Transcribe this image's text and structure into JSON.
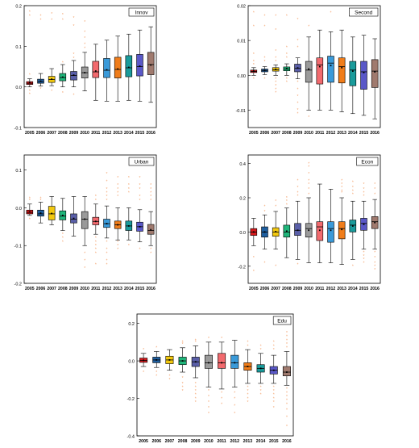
{
  "years": [
    "2005",
    "2006",
    "2007",
    "2008",
    "2009",
    "2010",
    "2011",
    "2012",
    "2013",
    "2014",
    "2015",
    "2016"
  ],
  "box_colors": [
    "#d7191c",
    "#1f5fa0",
    "#f2c80f",
    "#1fb57a",
    "#5a5fa8",
    "#9a9a9a",
    "#f26a6e",
    "#3a9ad9",
    "#f07d1a",
    "#1a9b9b",
    "#5a58c8",
    "#a07a6e"
  ],
  "outlier_color": "#f4a06a",
  "chart_data": [
    {
      "type": "box",
      "title": "Innov",
      "categories": [
        "2005",
        "2006",
        "2007",
        "2008",
        "2009",
        "2010",
        "2011",
        "2012",
        "2013",
        "2014",
        "2015",
        "2016"
      ],
      "ylim": [
        -0.1,
        0.2
      ],
      "yticks": [
        -0.1,
        0.0,
        0.1,
        0.2
      ],
      "ytick_labels": [
        "-0.1",
        "0.0",
        "0.1",
        "0.2"
      ],
      "boxes": [
        {
          "whislo": 0.0,
          "q1": 0.006,
          "med": 0.009,
          "q3": 0.013,
          "whishi": 0.02,
          "mean": 0.01,
          "fliers": [
            0.185,
            0.175,
            -0.01,
            0.03,
            -0.018
          ]
        },
        {
          "whislo": 0.002,
          "q1": 0.009,
          "med": 0.013,
          "q3": 0.019,
          "whishi": 0.033,
          "mean": 0.014,
          "fliers": [
            0.175,
            0.165,
            -0.005
          ]
        },
        {
          "whislo": 0.003,
          "q1": 0.011,
          "med": 0.018,
          "q3": 0.026,
          "whishi": 0.045,
          "mean": 0.019,
          "fliers": [
            0.18,
            0.165,
            -0.01
          ]
        },
        {
          "whislo": 0.0,
          "q1": 0.015,
          "med": 0.023,
          "q3": 0.033,
          "whishi": 0.055,
          "mean": 0.024,
          "fliers": [
            0.178,
            0.165,
            0.06,
            -0.015
          ]
        },
        {
          "whislo": 0.0,
          "q1": 0.017,
          "med": 0.028,
          "q3": 0.038,
          "whishi": 0.065,
          "mean": 0.029,
          "fliers": [
            0.17,
            0.15,
            0.08,
            0.07,
            -0.02
          ]
        },
        {
          "whislo": -0.01,
          "q1": 0.022,
          "med": 0.035,
          "q3": 0.049,
          "whishi": 0.085,
          "mean": 0.035,
          "fliers": [
            0.16,
            0.135,
            0.12,
            0.105,
            0.095
          ]
        },
        {
          "whislo": -0.033,
          "q1": 0.023,
          "med": 0.037,
          "q3": 0.063,
          "whishi": 0.105,
          "mean": 0.039,
          "fliers": []
        },
        {
          "whislo": -0.035,
          "q1": 0.023,
          "med": 0.041,
          "q3": 0.07,
          "whishi": 0.115,
          "mean": 0.042,
          "fliers": []
        },
        {
          "whislo": -0.035,
          "q1": 0.022,
          "med": 0.043,
          "q3": 0.073,
          "whishi": 0.125,
          "mean": 0.044,
          "fliers": []
        },
        {
          "whislo": -0.033,
          "q1": 0.025,
          "med": 0.047,
          "q3": 0.077,
          "whishi": 0.13,
          "mean": 0.048,
          "fliers": []
        },
        {
          "whislo": -0.035,
          "q1": 0.027,
          "med": 0.05,
          "q3": 0.08,
          "whishi": 0.14,
          "mean": 0.051,
          "fliers": []
        },
        {
          "whislo": -0.038,
          "q1": 0.03,
          "med": 0.055,
          "q3": 0.085,
          "whishi": 0.148,
          "mean": 0.054,
          "fliers": []
        }
      ]
    },
    {
      "type": "box",
      "title": "Second",
      "categories": [
        "2005",
        "2006",
        "2007",
        "2008",
        "2009",
        "2010",
        "2011",
        "2012",
        "2013",
        "2014",
        "2015",
        "2016"
      ],
      "ylim": [
        -0.015,
        0.02
      ],
      "yticks": [
        -0.01,
        0.0,
        0.01,
        0.02
      ],
      "ytick_labels": [
        "-0.01",
        "0.00",
        "0.01",
        "0.02"
      ],
      "boxes": [
        {
          "whislo": 0.0,
          "q1": 0.0008,
          "med": 0.0011,
          "q3": 0.0015,
          "whishi": 0.0022,
          "mean": 0.0012,
          "fliers": [
            0.018,
            0.014,
            0.006,
            0.004,
            0.003,
            -0.001
          ]
        },
        {
          "whislo": 0.0002,
          "q1": 0.001,
          "med": 0.0014,
          "q3": 0.0018,
          "whishi": 0.0025,
          "mean": 0.0014,
          "fliers": [
            0.017,
            0.014,
            0.005,
            0.004,
            -0.001
          ]
        },
        {
          "whislo": 0.0,
          "q1": 0.0012,
          "med": 0.0016,
          "q3": 0.0022,
          "whishi": 0.003,
          "mean": 0.0017,
          "fliers": [
            0.017,
            0.013,
            0.007,
            0.005,
            0.004,
            -0.001,
            -0.002,
            -0.003,
            -0.004,
            -0.005
          ]
        },
        {
          "whislo": 0.0,
          "q1": 0.0013,
          "med": 0.0018,
          "q3": 0.0024,
          "whishi": 0.0033,
          "mean": 0.0019,
          "fliers": [
            0.017,
            0.008,
            0.006,
            0.005,
            -0.001,
            -0.002
          ]
        },
        {
          "whislo": -0.001,
          "q1": 0.001,
          "med": 0.002,
          "q3": 0.0032,
          "whishi": 0.005,
          "mean": 0.0021,
          "fliers": [
            0.016,
            0.01,
            0.008,
            -0.002,
            -0.004,
            -0.006,
            -0.008,
            -0.01,
            -0.011
          ]
        },
        {
          "whislo": -0.01,
          "q1": -0.002,
          "med": 0.0015,
          "q3": 0.004,
          "whishi": 0.011,
          "mean": 0.0018,
          "fliers": [
            0.014,
            -0.012
          ]
        },
        {
          "whislo": -0.01,
          "q1": -0.0025,
          "med": 0.003,
          "q3": 0.005,
          "whishi": 0.013,
          "mean": 0.0025,
          "fliers": []
        },
        {
          "whislo": -0.01,
          "q1": -0.002,
          "med": 0.0035,
          "q3": 0.0055,
          "whishi": 0.0125,
          "mean": 0.0028,
          "fliers": [
            0.018
          ]
        },
        {
          "whislo": -0.0105,
          "q1": -0.0022,
          "med": 0.0025,
          "q3": 0.005,
          "whishi": 0.013,
          "mean": 0.0022,
          "fliers": []
        },
        {
          "whislo": -0.011,
          "q1": -0.003,
          "med": 0.0015,
          "q3": 0.004,
          "whishi": 0.011,
          "mean": 0.0012,
          "fliers": []
        },
        {
          "whislo": -0.0115,
          "q1": -0.004,
          "med": 0.001,
          "q3": 0.004,
          "whishi": 0.0115,
          "mean": 0.0008,
          "fliers": []
        },
        {
          "whislo": -0.0125,
          "q1": -0.0035,
          "med": 0.0012,
          "q3": 0.0045,
          "whishi": 0.0105,
          "mean": 0.001,
          "fliers": []
        }
      ]
    },
    {
      "type": "box",
      "title": "Urban",
      "categories": [
        "2005",
        "2006",
        "2007",
        "2008",
        "2009",
        "2010",
        "2011",
        "2012",
        "2013",
        "2014",
        "2015",
        "2016"
      ],
      "ylim": [
        -0.2,
        0.14
      ],
      "yticks": [
        -0.2,
        -0.1,
        0.0,
        0.1
      ],
      "ytick_labels": [
        "-0.2",
        "-0.1",
        "0.0",
        "0.1"
      ],
      "boxes": [
        {
          "whislo": -0.02,
          "q1": -0.016,
          "med": -0.012,
          "q3": -0.006,
          "whishi": 0.01,
          "mean": -0.011,
          "fliers": [
            0.02,
            0.025,
            -0.03
          ]
        },
        {
          "whislo": -0.04,
          "q1": -0.022,
          "med": -0.016,
          "q3": -0.006,
          "whishi": 0.015,
          "mean": -0.014,
          "fliers": [
            0.025,
            0.02
          ]
        },
        {
          "whislo": -0.045,
          "q1": -0.032,
          "med": -0.016,
          "q3": 0.004,
          "whishi": 0.03,
          "mean": -0.015,
          "fliers": []
        },
        {
          "whislo": -0.06,
          "q1": -0.032,
          "med": -0.022,
          "q3": -0.008,
          "whishi": 0.025,
          "mean": -0.02,
          "fliers": [
            -0.07,
            -0.08,
            -0.09
          ]
        },
        {
          "whislo": -0.075,
          "q1": -0.04,
          "med": -0.03,
          "q3": -0.016,
          "whishi": 0.03,
          "mean": -0.028,
          "fliers": []
        },
        {
          "whislo": -0.1,
          "q1": -0.055,
          "med": -0.03,
          "q3": -0.01,
          "whishi": 0.03,
          "mean": -0.03,
          "fliers": [
            -0.12,
            -0.14,
            -0.16
          ]
        },
        {
          "whislo": -0.07,
          "q1": -0.045,
          "med": -0.036,
          "q3": -0.025,
          "whishi": 0.01,
          "mean": -0.036,
          "fliers": [
            -0.08,
            -0.09,
            -0.1,
            -0.11,
            -0.12,
            -0.15,
            0.02,
            0.03
          ]
        },
        {
          "whislo": -0.08,
          "q1": -0.052,
          "med": -0.042,
          "q3": -0.03,
          "whishi": 0.005,
          "mean": -0.042,
          "fliers": [
            0.09,
            0.07,
            0.05,
            0.04,
            0.03,
            0.02,
            -0.09,
            -0.11,
            -0.12,
            -0.14,
            -0.15
          ]
        },
        {
          "whislo": -0.085,
          "q1": -0.055,
          "med": -0.045,
          "q3": -0.035,
          "whishi": 0.0,
          "mean": -0.045,
          "fliers": [
            0.08,
            0.06,
            0.05,
            0.04,
            0.03,
            -0.09,
            -0.1,
            -0.11
          ]
        },
        {
          "whislo": -0.085,
          "q1": -0.06,
          "med": -0.048,
          "q3": -0.035,
          "whishi": 0.0,
          "mean": -0.048,
          "fliers": [
            0.08,
            0.06,
            0.05,
            0.04,
            -0.1
          ]
        },
        {
          "whislo": -0.09,
          "q1": -0.062,
          "med": -0.05,
          "q3": -0.038,
          "whishi": -0.005,
          "mean": -0.05,
          "fliers": [
            0.08,
            0.06,
            0.05,
            0.03,
            0.02,
            -0.11
          ]
        },
        {
          "whislo": -0.1,
          "q1": -0.07,
          "med": -0.06,
          "q3": -0.044,
          "whishi": -0.01,
          "mean": -0.058,
          "fliers": [
            0.06,
            0.05,
            0.04,
            0.03,
            0.02,
            -0.11,
            -0.12
          ]
        }
      ]
    },
    {
      "type": "box",
      "title": "Econ",
      "categories": [
        "2005",
        "2006",
        "2007",
        "2008",
        "2009",
        "2010",
        "2011",
        "2012",
        "2013",
        "2014",
        "2015",
        "2016"
      ],
      "ylim": [
        -0.3,
        0.45
      ],
      "yticks": [
        -0.2,
        0.0,
        0.2,
        0.4
      ],
      "ytick_labels": [
        "-0.2",
        "0.0",
        "0.2",
        "0.4"
      ],
      "boxes": [
        {
          "whislo": -0.08,
          "q1": -0.02,
          "med": 0.0,
          "q3": 0.02,
          "whishi": 0.08,
          "mean": 0.0,
          "fliers": [
            -0.15,
            -0.23
          ]
        },
        {
          "whislo": -0.1,
          "q1": -0.03,
          "med": 0.0,
          "q3": 0.03,
          "whishi": 0.1,
          "mean": 0.0,
          "fliers": [
            0.15,
            0.12,
            -0.18
          ]
        },
        {
          "whislo": -0.1,
          "q1": -0.025,
          "med": 0.0,
          "q3": 0.025,
          "whishi": 0.12,
          "mean": 0.002,
          "fliers": [
            0.18,
            0.15,
            -0.2
          ]
        },
        {
          "whislo": -0.15,
          "q1": -0.03,
          "med": 0.0,
          "q3": 0.04,
          "whishi": 0.14,
          "mean": 0.005,
          "fliers": [
            0.2,
            0.18,
            0.16
          ]
        },
        {
          "whislo": -0.16,
          "q1": -0.02,
          "med": 0.01,
          "q3": 0.05,
          "whishi": 0.18,
          "mean": 0.01,
          "fliers": [
            0.3,
            0.26,
            0.23,
            0.21,
            -0.19
          ]
        },
        {
          "whislo": -0.18,
          "q1": -0.03,
          "med": 0.02,
          "q3": 0.05,
          "whishi": 0.2,
          "mean": 0.01,
          "fliers": [
            0.4,
            0.38,
            0.34,
            0.3,
            0.28,
            0.25,
            0.22
          ]
        },
        {
          "whislo": -0.18,
          "q1": -0.05,
          "med": 0.03,
          "q3": 0.06,
          "whishi": 0.28,
          "mean": 0.01,
          "fliers": []
        },
        {
          "whislo": -0.18,
          "q1": -0.06,
          "med": 0.02,
          "q3": 0.06,
          "whishi": 0.25,
          "mean": 0.01,
          "fliers": []
        },
        {
          "whislo": -0.19,
          "q1": -0.04,
          "med": 0.02,
          "q3": 0.06,
          "whishi": 0.2,
          "mean": 0.015,
          "fliers": [
            0.3,
            0.28,
            0.26,
            0.24,
            0.23
          ]
        },
        {
          "whislo": -0.16,
          "q1": 0.0,
          "med": 0.04,
          "q3": 0.07,
          "whishi": 0.18,
          "mean": 0.035,
          "fliers": [
            0.29,
            0.26,
            0.24,
            0.22,
            -0.2
          ]
        },
        {
          "whislo": -0.1,
          "q1": 0.01,
          "med": 0.05,
          "q3": 0.08,
          "whishi": 0.18,
          "mean": 0.045,
          "fliers": [
            0.28,
            0.25,
            0.23,
            0.21,
            -0.12,
            -0.14,
            -0.16,
            -0.18
          ]
        },
        {
          "whislo": -0.1,
          "q1": 0.02,
          "med": 0.06,
          "q3": 0.09,
          "whishi": 0.19,
          "mean": 0.055,
          "fliers": [
            0.28,
            0.25,
            0.22,
            -0.12,
            -0.15,
            -0.18,
            -0.2,
            -0.22
          ]
        }
      ]
    },
    {
      "type": "box",
      "title": "Edu",
      "categories": [
        "2005",
        "2006",
        "2007",
        "2008",
        "2009",
        "2010",
        "2011",
        "2012",
        "2013",
        "2014",
        "2015",
        "2016"
      ],
      "ylim": [
        -0.4,
        0.25
      ],
      "yticks": [
        -0.4,
        -0.2,
        0.0,
        0.2
      ],
      "ytick_labels": [
        "-0.4",
        "-0.2",
        "0.0",
        "0.2"
      ],
      "boxes": [
        {
          "whislo": -0.03,
          "q1": -0.008,
          "med": 0.002,
          "q3": 0.015,
          "whishi": 0.04,
          "mean": 0.003,
          "fliers": [
            0.06,
            -0.06
          ]
        },
        {
          "whislo": -0.035,
          "q1": -0.01,
          "med": 0.005,
          "q3": 0.02,
          "whishi": 0.05,
          "mean": 0.005,
          "fliers": [
            0.07,
            -0.06,
            -0.08
          ]
        },
        {
          "whislo": -0.05,
          "q1": -0.015,
          "med": 0.005,
          "q3": 0.025,
          "whishi": 0.06,
          "mean": 0.005,
          "fliers": [
            -0.08,
            -0.1
          ]
        },
        {
          "whislo": -0.06,
          "q1": -0.02,
          "med": 0.0,
          "q3": 0.02,
          "whishi": 0.07,
          "mean": 0.0,
          "fliers": [
            0.1,
            0.09,
            -0.09,
            -0.12,
            -0.14,
            -0.16
          ]
        },
        {
          "whislo": -0.09,
          "q1": -0.03,
          "med": -0.005,
          "q3": 0.02,
          "whishi": 0.08,
          "mean": -0.005,
          "fliers": [
            0.11,
            0.1,
            -0.12,
            -0.14,
            -0.16,
            -0.18,
            -0.2,
            -0.22
          ]
        },
        {
          "whislo": -0.14,
          "q1": -0.04,
          "med": -0.01,
          "q3": 0.03,
          "whishi": 0.1,
          "mean": -0.01,
          "fliers": [
            0.12,
            -0.16,
            -0.19,
            -0.22,
            -0.25,
            -0.28
          ]
        },
        {
          "whislo": -0.15,
          "q1": -0.04,
          "med": -0.01,
          "q3": 0.04,
          "whishi": 0.1,
          "mean": -0.01,
          "fliers": [
            0.12,
            -0.17,
            -0.2,
            -0.23
          ]
        },
        {
          "whislo": -0.14,
          "q1": -0.04,
          "med": -0.01,
          "q3": 0.03,
          "whishi": 0.11,
          "mean": -0.01,
          "fliers": [
            -0.17,
            -0.2,
            -0.24,
            -0.28
          ]
        },
        {
          "whislo": -0.12,
          "q1": -0.05,
          "med": -0.03,
          "q3": -0.01,
          "whishi": 0.06,
          "mean": -0.03,
          "fliers": [
            0.1,
            0.08,
            -0.14,
            -0.16,
            -0.18,
            -0.2,
            -0.22
          ]
        },
        {
          "whislo": -0.12,
          "q1": -0.06,
          "med": -0.04,
          "q3": -0.02,
          "whishi": 0.04,
          "mean": -0.04,
          "fliers": [
            0.08,
            0.06,
            -0.14,
            -0.16,
            -0.18
          ]
        },
        {
          "whislo": -0.12,
          "q1": -0.07,
          "med": -0.05,
          "q3": -0.03,
          "whishi": 0.03,
          "mean": -0.05,
          "fliers": [
            0.1,
            0.08,
            0.06,
            -0.14,
            -0.16,
            -0.18,
            -0.2,
            -0.22,
            -0.25
          ]
        },
        {
          "whislo": -0.13,
          "q1": -0.08,
          "med": -0.06,
          "q3": -0.03,
          "whishi": 0.05,
          "mean": -0.06,
          "fliers": [
            0.15,
            0.13,
            0.11,
            0.09,
            0.07,
            -0.15,
            -0.17,
            -0.19,
            -0.21,
            -0.23,
            -0.26,
            -0.3,
            -0.35
          ]
        }
      ]
    }
  ]
}
